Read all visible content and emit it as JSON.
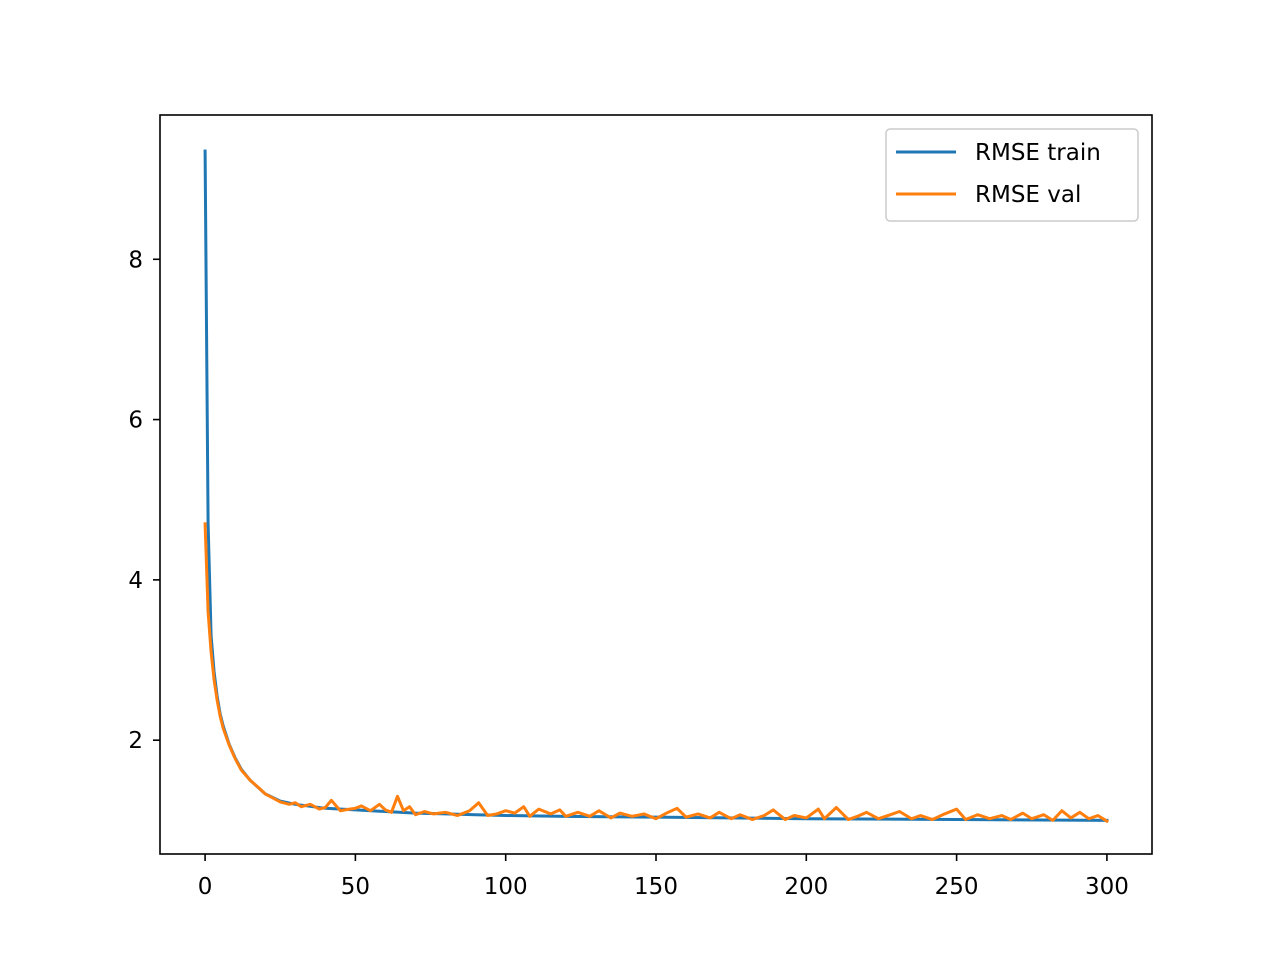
{
  "chart_data": {
    "type": "line",
    "title": "",
    "xlabel": "",
    "ylabel": "",
    "xlim": [
      -15,
      315
    ],
    "ylim": [
      0.58,
      9.8
    ],
    "x_ticks": [
      0,
      50,
      100,
      150,
      200,
      250,
      300
    ],
    "x_tick_labels": [
      "0",
      "50",
      "100",
      "150",
      "200",
      "250",
      "300"
    ],
    "y_ticks": [
      2,
      4,
      6,
      8
    ],
    "y_tick_labels": [
      "2",
      "4",
      "6",
      "8"
    ],
    "grid": false,
    "legend_placement": "upper right",
    "series": [
      {
        "name": "RMSE train",
        "color": "#1f77b4",
        "x": [
          0,
          1,
          2,
          3,
          4,
          5,
          6,
          8,
          10,
          12,
          15,
          20,
          25,
          30,
          40,
          50,
          60,
          70,
          80,
          90,
          100,
          120,
          150,
          200,
          250,
          300
        ],
        "y": [
          9.35,
          4.7,
          3.3,
          2.85,
          2.55,
          2.33,
          2.18,
          1.95,
          1.78,
          1.64,
          1.5,
          1.33,
          1.24,
          1.2,
          1.15,
          1.13,
          1.11,
          1.09,
          1.08,
          1.07,
          1.06,
          1.05,
          1.04,
          1.02,
          1.01,
          1.0
        ]
      },
      {
        "name": "RMSE val",
        "color": "#ff7f0e",
        "x": [
          0,
          1,
          2,
          3,
          4,
          5,
          6,
          8,
          10,
          12,
          15,
          18,
          20,
          23,
          25,
          28,
          30,
          32,
          35,
          38,
          40,
          42,
          45,
          48,
          50,
          52,
          55,
          58,
          60,
          62,
          64,
          66,
          68,
          70,
          73,
          76,
          80,
          84,
          88,
          91,
          94,
          97,
          100,
          103,
          106,
          108,
          111,
          115,
          118,
          120,
          124,
          128,
          131,
          135,
          138,
          142,
          146,
          150,
          154,
          157,
          160,
          164,
          168,
          171,
          175,
          178,
          182,
          186,
          189,
          193,
          196,
          200,
          204,
          206,
          210,
          214,
          217,
          220,
          224,
          228,
          231,
          235,
          238,
          242,
          246,
          250,
          253,
          257,
          261,
          265,
          268,
          272,
          275,
          279,
          282,
          285,
          288,
          291,
          294,
          297,
          300
        ],
        "y": [
          4.7,
          3.6,
          3.1,
          2.75,
          2.5,
          2.3,
          2.15,
          1.94,
          1.77,
          1.63,
          1.5,
          1.4,
          1.33,
          1.27,
          1.23,
          1.2,
          1.22,
          1.17,
          1.2,
          1.14,
          1.16,
          1.25,
          1.12,
          1.14,
          1.15,
          1.18,
          1.12,
          1.2,
          1.13,
          1.1,
          1.3,
          1.12,
          1.17,
          1.07,
          1.11,
          1.08,
          1.1,
          1.06,
          1.12,
          1.22,
          1.06,
          1.08,
          1.12,
          1.09,
          1.17,
          1.05,
          1.14,
          1.08,
          1.13,
          1.05,
          1.1,
          1.05,
          1.12,
          1.03,
          1.09,
          1.05,
          1.08,
          1.02,
          1.1,
          1.15,
          1.04,
          1.08,
          1.03,
          1.1,
          1.02,
          1.07,
          1.01,
          1.06,
          1.13,
          1.01,
          1.06,
          1.03,
          1.14,
          1.02,
          1.16,
          1.01,
          1.05,
          1.1,
          1.02,
          1.07,
          1.11,
          1.02,
          1.06,
          1.01,
          1.08,
          1.14,
          1.01,
          1.07,
          1.02,
          1.06,
          1.01,
          1.09,
          1.02,
          1.07,
          1.0,
          1.12,
          1.03,
          1.1,
          1.02,
          1.06,
          0.99
        ]
      }
    ]
  }
}
